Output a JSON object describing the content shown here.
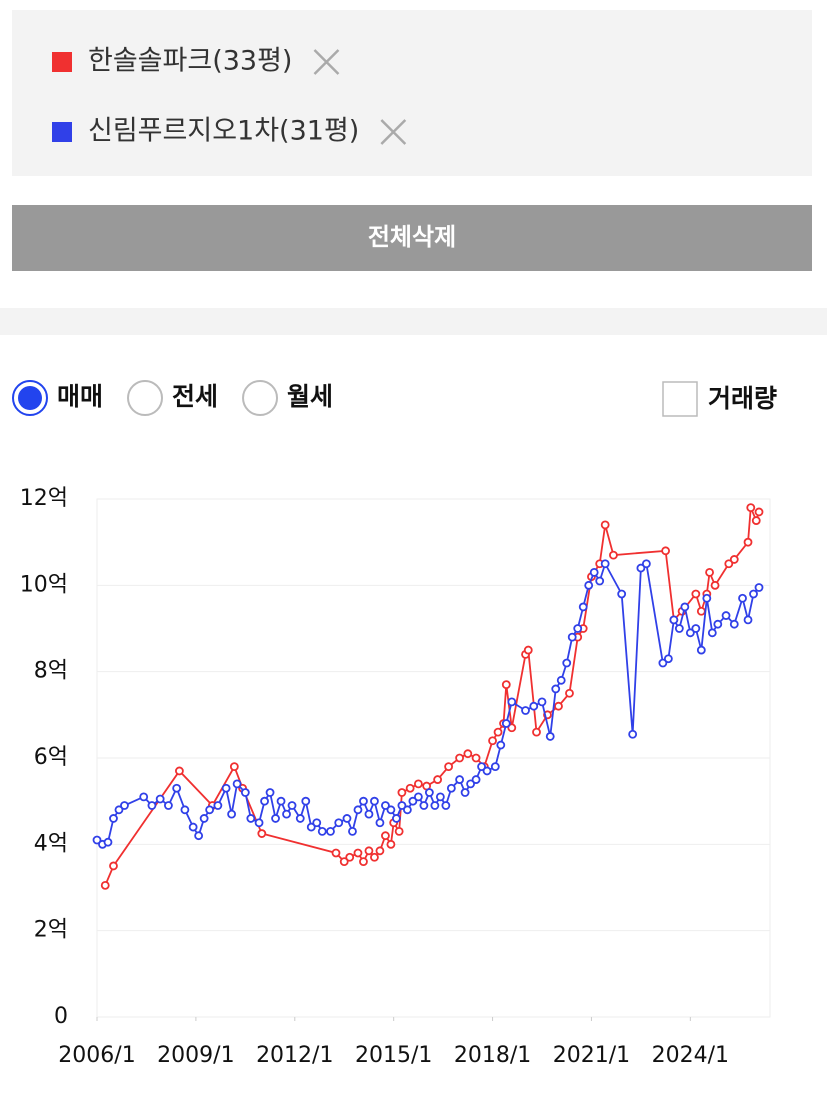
{
  "ui": {
    "delete_all": "전체삭제",
    "radios": [
      "매매",
      "전세",
      "월세"
    ],
    "selected_radio": 0,
    "checkbox": "거래량"
  },
  "chart_data": {
    "type": "line",
    "xlim": [
      "2006/1",
      "2026/6"
    ],
    "xticks": [
      "2006/1",
      "2009/1",
      "2012/1",
      "2015/1",
      "2018/1",
      "2021/1",
      "2024/1"
    ],
    "ylim": [
      0,
      12
    ],
    "yticks": [
      0,
      {
        "value": 2,
        "label": "2억"
      },
      {
        "value": 4,
        "label": "4억"
      },
      {
        "value": 6,
        "label": "6억"
      },
      {
        "value": 8,
        "label": "8억"
      },
      {
        "value": 10,
        "label": "10억"
      },
      {
        "value": 12,
        "label": "12억"
      }
    ],
    "grid": true,
    "series": [
      {
        "name": "한솔솔파크(33평)",
        "color": "#f03030",
        "x": [
          "2006/4",
          "2006/7",
          "2008/7",
          "2009/7",
          "2010/3",
          "2010/6",
          "2011/1",
          "2013/4",
          "2013/7",
          "2013/9",
          "2013/12",
          "2014/2",
          "2014/4",
          "2014/6",
          "2014/8",
          "2014/10",
          "2014/12",
          "2015/1",
          "2015/3",
          "2015/4",
          "2015/7",
          "2015/10",
          "2016/1",
          "2016/5",
          "2016/9",
          "2017/1",
          "2017/4",
          "2017/7",
          "2017/10",
          "2018/1",
          "2018/3",
          "2018/5",
          "2018/6",
          "2018/8",
          "2019/1",
          "2019/2",
          "2019/5",
          "2019/9",
          "2020/1",
          "2020/5",
          "2020/8",
          "2020/10",
          "2021/1",
          "2021/4",
          "2021/6",
          "2021/9",
          "2023/4",
          "2023/7",
          "2023/10",
          "2024/3",
          "2024/5",
          "2024/7",
          "2024/8",
          "2024/10",
          "2025/3",
          "2025/5",
          "2025/10",
          "2025/11",
          "2026/1",
          "2026/2"
        ],
        "values": [
          3.05,
          3.5,
          5.7,
          4.9,
          5.8,
          5.3,
          4.25,
          3.8,
          3.6,
          3.7,
          3.8,
          3.6,
          3.85,
          3.7,
          3.85,
          4.2,
          4.0,
          4.5,
          4.3,
          5.2,
          5.3,
          5.4,
          5.35,
          5.5,
          5.8,
          6.0,
          6.1,
          6.0,
          5.8,
          6.4,
          6.6,
          6.8,
          7.7,
          6.7,
          8.4,
          8.5,
          6.6,
          7.0,
          7.2,
          7.5,
          8.8,
          9.0,
          10.2,
          10.5,
          11.4,
          10.7,
          10.8,
          9.2,
          9.4,
          9.8,
          9.4,
          9.8,
          10.3,
          10.0,
          10.5,
          10.6,
          11.0,
          11.8,
          11.5,
          11.7
        ]
      },
      {
        "name": "신림푸르지오1차(31평)",
        "color": "#3040e8",
        "x": [
          "2006/1",
          "2006/3",
          "2006/5",
          "2006/7",
          "2006/9",
          "2006/11",
          "2007/6",
          "2007/9",
          "2007/12",
          "2008/3",
          "2008/6",
          "2008/9",
          "2008/12",
          "2009/2",
          "2009/4",
          "2009/6",
          "2009/9",
          "2009/12",
          "2010/2",
          "2010/4",
          "2010/7",
          "2010/9",
          "2010/12",
          "2011/2",
          "2011/4",
          "2011/6",
          "2011/8",
          "2011/10",
          "2011/12",
          "2012/3",
          "2012/5",
          "2012/7",
          "2012/9",
          "2012/11",
          "2013/2",
          "2013/5",
          "2013/8",
          "2013/10",
          "2013/12",
          "2014/2",
          "2014/4",
          "2014/6",
          "2014/8",
          "2014/10",
          "2014/12",
          "2015/2",
          "2015/4",
          "2015/6",
          "2015/8",
          "2015/10",
          "2015/12",
          "2016/2",
          "2016/4",
          "2016/6",
          "2016/8",
          "2016/10",
          "2017/1",
          "2017/3",
          "2017/5",
          "2017/7",
          "2017/9",
          "2017/11",
          "2018/2",
          "2018/4",
          "2018/6",
          "2018/8",
          "2019/1",
          "2019/4",
          "2019/7",
          "2019/10",
          "2019/12",
          "2020/2",
          "2020/4",
          "2020/6",
          "2020/8",
          "2020/10",
          "2020/12",
          "2021/2",
          "2021/4",
          "2021/6",
          "2021/12",
          "2022/4",
          "2022/7",
          "2022/9",
          "2023/3",
          "2023/5",
          "2023/7",
          "2023/9",
          "2023/11",
          "2024/1",
          "2024/3",
          "2024/5",
          "2024/7",
          "2024/9",
          "2024/11",
          "2025/2",
          "2025/5",
          "2025/8",
          "2025/10",
          "2025/12",
          "2026/2"
        ],
        "values": [
          4.1,
          4.0,
          4.05,
          4.6,
          4.8,
          4.9,
          5.1,
          4.9,
          5.05,
          4.9,
          5.3,
          4.8,
          4.4,
          4.2,
          4.6,
          4.8,
          4.9,
          5.3,
          4.7,
          5.4,
          5.2,
          4.6,
          4.5,
          5.0,
          5.2,
          4.6,
          5.0,
          4.7,
          4.9,
          4.6,
          5.0,
          4.4,
          4.5,
          4.3,
          4.3,
          4.5,
          4.6,
          4.3,
          4.8,
          5.0,
          4.7,
          5.0,
          4.5,
          4.9,
          4.8,
          4.6,
          4.9,
          4.8,
          5.0,
          5.1,
          4.9,
          5.2,
          4.9,
          5.1,
          4.9,
          5.3,
          5.5,
          5.2,
          5.4,
          5.5,
          5.8,
          5.7,
          5.8,
          6.3,
          6.8,
          7.3,
          7.1,
          7.2,
          7.3,
          6.5,
          7.6,
          7.8,
          8.2,
          8.8,
          9.0,
          9.5,
          10.0,
          10.3,
          10.1,
          10.5,
          9.8,
          6.55,
          10.4,
          10.5,
          8.2,
          8.3,
          9.2,
          9.0,
          9.5,
          8.9,
          9.0,
          8.5,
          9.7,
          8.9,
          9.1,
          9.3,
          9.1,
          9.7,
          9.2,
          9.8,
          9.95
        ]
      }
    ]
  }
}
